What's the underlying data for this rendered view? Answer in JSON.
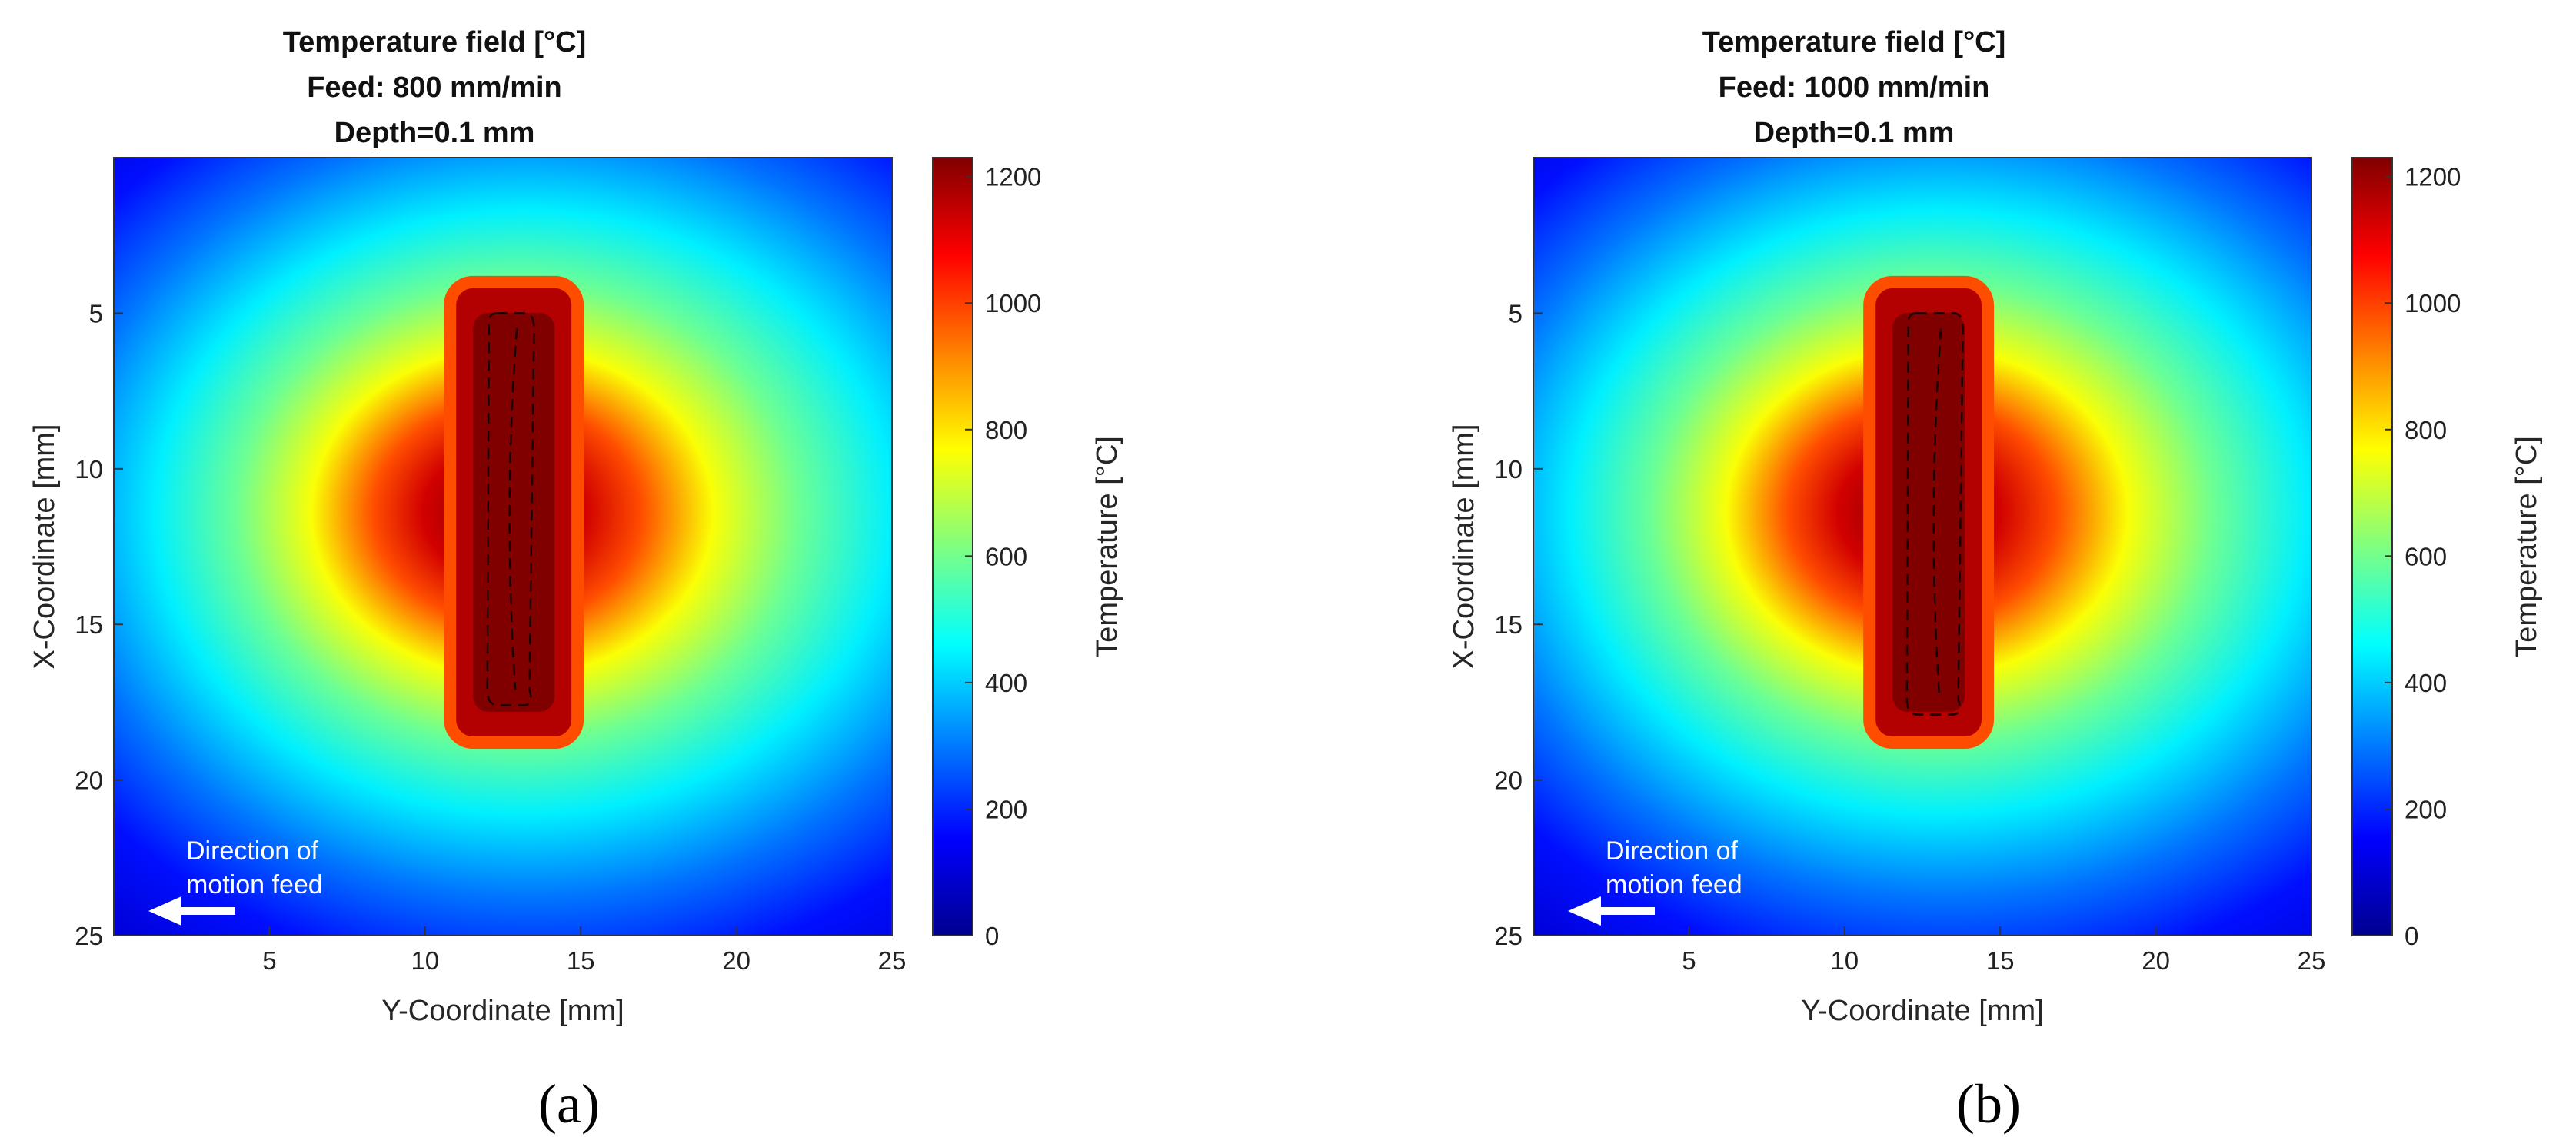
{
  "chart_data": [
    {
      "type": "heatmap",
      "panel_label": "(a)",
      "title": [
        "Temperature field [°C]",
        "Feed: 800 mm/min",
        "Depth=0.1 mm"
      ],
      "xlabel": "Y-Coordinate [mm]",
      "ylabel": "X-Coordinate [mm]",
      "xlim": [
        0,
        25
      ],
      "ylim": [
        0,
        25
      ],
      "y_direction": "reversed",
      "xticks": [
        5,
        10,
        15,
        20,
        25
      ],
      "yticks": [
        5,
        10,
        15,
        20,
        25
      ],
      "colorbar": {
        "label": "Temperature [°C]",
        "range": [
          0,
          1230
        ],
        "ticks": [
          0,
          200,
          400,
          600,
          800,
          1000,
          1200
        ],
        "colormap": "jet",
        "colors": [
          "#00008f",
          "#0000ff",
          "#0080ff",
          "#00ffff",
          "#80ff80",
          "#ffff00",
          "#ff8000",
          "#ff0000",
          "#800000"
        ]
      },
      "background_temperature": 100,
      "hot_zone": {
        "y_range": [
          10.8,
          14.9
        ],
        "x_range": [
          4.0,
          18.8
        ],
        "peak_temperature": 1230
      },
      "melt_pool_contour": {
        "style": "dashed",
        "y_range": [
          12.0,
          13.5
        ],
        "x_range": [
          5.0,
          17.6
        ]
      },
      "annotation": {
        "text": [
          "Direction of",
          "motion feed"
        ],
        "arrow": "left",
        "color": "#ffffff"
      }
    },
    {
      "type": "heatmap",
      "panel_label": "(b)",
      "title": [
        "Temperature field [°C]",
        "Feed: 1000 mm/min",
        "Depth=0.1 mm"
      ],
      "xlabel": "Y-Coordinate [mm]",
      "ylabel": "X-Coordinate [mm]",
      "xlim": [
        0,
        25
      ],
      "ylim": [
        0,
        25
      ],
      "y_direction": "reversed",
      "xticks": [
        5,
        10,
        15,
        20,
        25
      ],
      "yticks": [
        5,
        10,
        15,
        20,
        25
      ],
      "colorbar": {
        "label": "Temperature [°C]",
        "range": [
          0,
          1230
        ],
        "ticks": [
          0,
          200,
          400,
          600,
          800,
          1000,
          1200
        ],
        "colormap": "jet",
        "colors": [
          "#00008f",
          "#0000ff",
          "#0080ff",
          "#00ffff",
          "#80ff80",
          "#ffff00",
          "#ff8000",
          "#ff0000",
          "#800000"
        ]
      },
      "background_temperature": 100,
      "hot_zone": {
        "y_range": [
          10.8,
          14.6
        ],
        "x_range": [
          4.0,
          18.8
        ],
        "peak_temperature": 1230
      },
      "melt_pool_contour": {
        "style": "dashed",
        "y_range": [
          12.0,
          13.8
        ],
        "x_range": [
          5.0,
          17.9
        ]
      },
      "annotation": {
        "text": [
          "Direction of",
          "motion feed"
        ],
        "arrow": "left",
        "color": "#ffffff"
      }
    }
  ]
}
